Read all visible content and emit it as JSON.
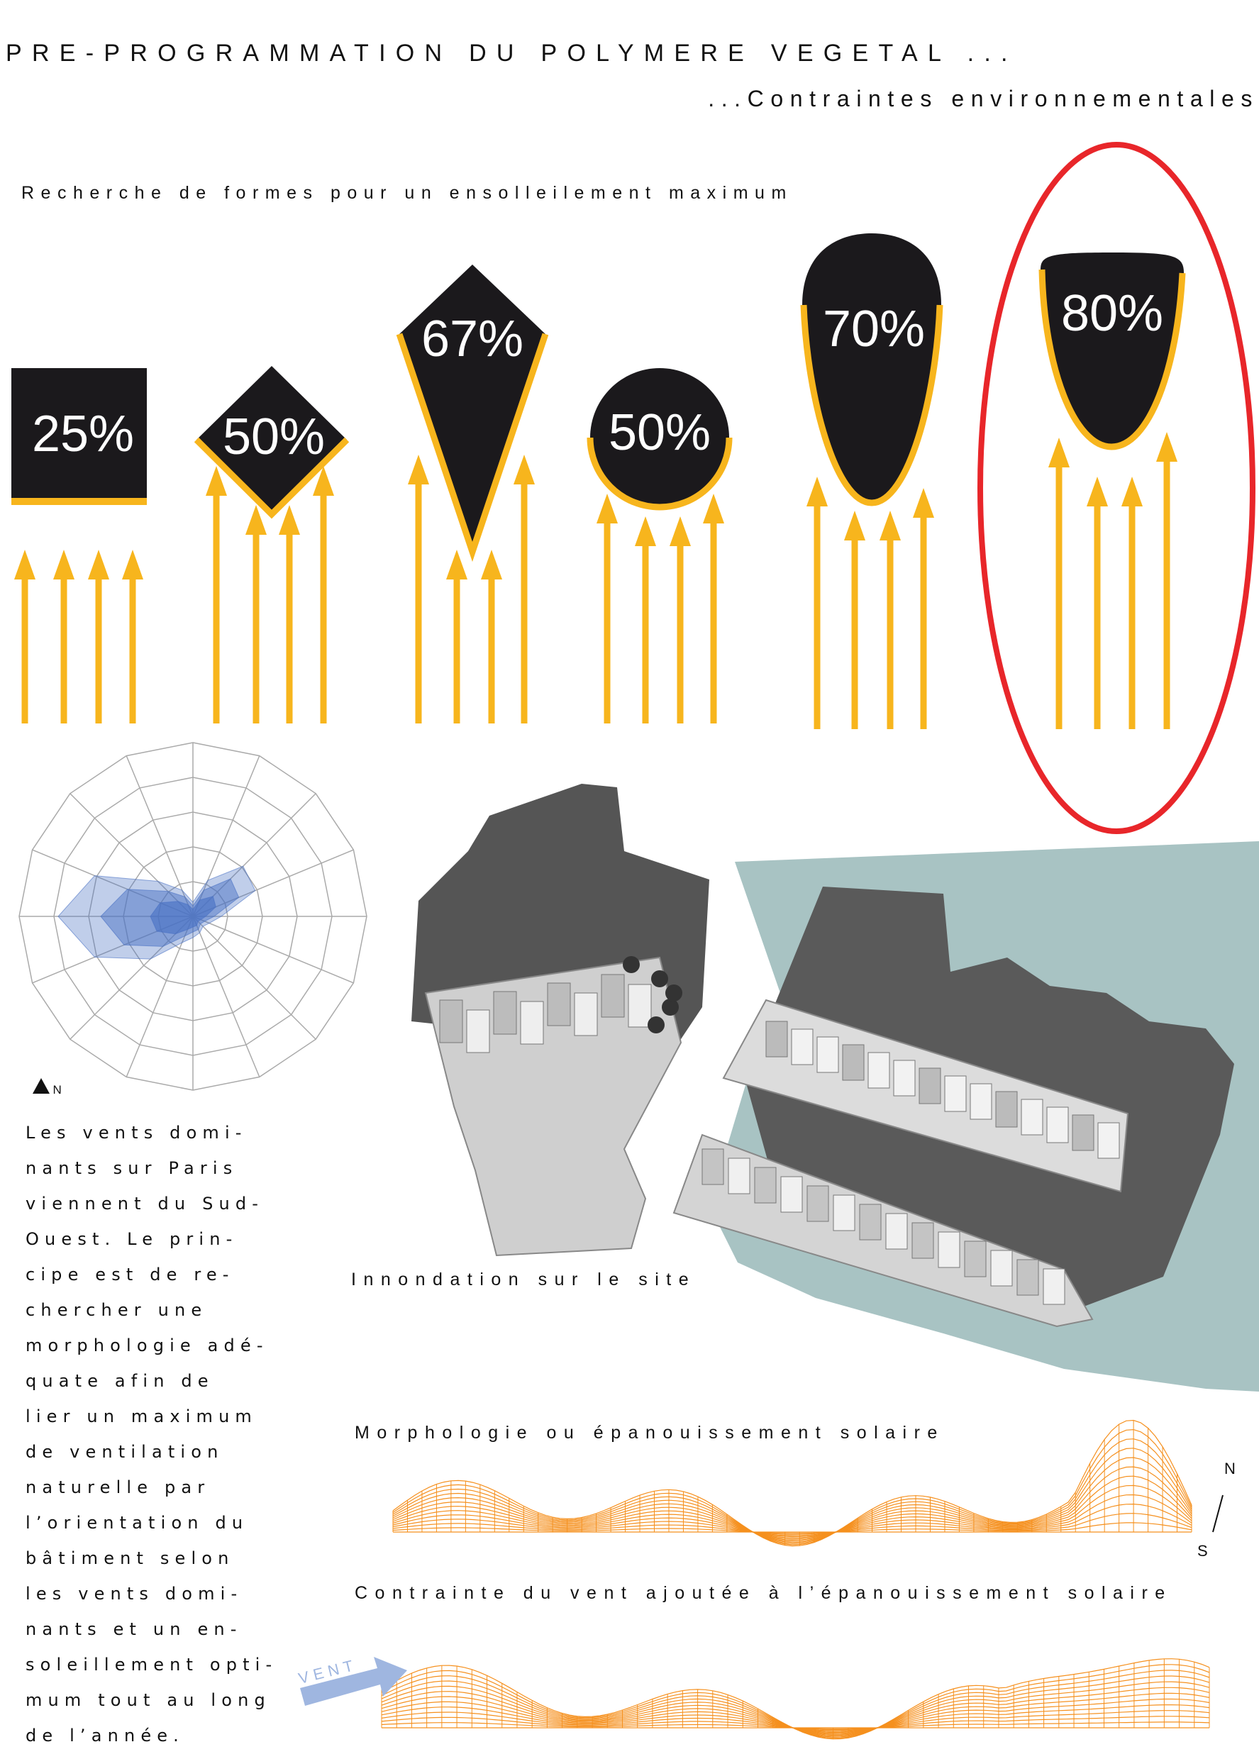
{
  "header": {
    "title": "PRE-PROGRAMMATION DU POLYMERE VEGETAL ...",
    "subtitle": "...Contraintes environnementales"
  },
  "forms": {
    "heading": "Recherche de formes pour un ensolleilement maximum",
    "shapes": [
      {
        "type": "square",
        "label": "25%"
      },
      {
        "type": "diamond",
        "label": "50%"
      },
      {
        "type": "kite",
        "label": "67%"
      },
      {
        "type": "circle",
        "label": "50%"
      },
      {
        "type": "teardrop",
        "label": "70%"
      },
      {
        "type": "rounded-drop",
        "label": "80%",
        "highlighted": true
      }
    ]
  },
  "wind": {
    "north_label": "N",
    "text_lines": [
      "Les vents domi-",
      "nants sur Paris",
      "viennent du Sud-",
      "Ouest. Le prin-",
      "cipe est de re-",
      "chercher une",
      "morphologie adé-",
      "quate afin de",
      "lier un maximum",
      "de ventilation",
      "naturelle par",
      "l’orientation du",
      "bâtiment selon",
      "les vents domi-",
      "nants et un en-",
      "soleillement opti-",
      "mum tout au long",
      "de l’année."
    ]
  },
  "site": {
    "caption": "Innondation sur le site"
  },
  "solar": {
    "caption": "Morphologie ou épanouissement solaire",
    "north": "N",
    "south": "S"
  },
  "windsolar": {
    "caption": "Contrainte du vent ajoutée à l’épanouissement solaire",
    "arrow_label": "VENT"
  },
  "colors": {
    "shape": "#1b191c",
    "sun": "#f7b51d",
    "highlight": "#e8262a",
    "wind": "#4a72c4",
    "water": "#a8c3c3",
    "mesh": "#f5901e"
  }
}
